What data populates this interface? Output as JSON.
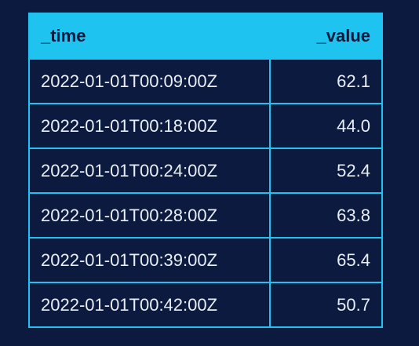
{
  "table": {
    "columns": [
      "_time",
      "_value"
    ],
    "rows": [
      {
        "time": "2022-01-01T00:09:00Z",
        "value": "62.1"
      },
      {
        "time": "2022-01-01T00:18:00Z",
        "value": "44.0"
      },
      {
        "time": "2022-01-01T00:24:00Z",
        "value": "52.4"
      },
      {
        "time": "2022-01-01T00:28:00Z",
        "value": "63.8"
      },
      {
        "time": "2022-01-01T00:39:00Z",
        "value": "65.4"
      },
      {
        "time": "2022-01-01T00:42:00Z",
        "value": "50.7"
      }
    ]
  },
  "colors": {
    "background": "#0b1a3e",
    "header_accent": "#1ec4ef",
    "text": "#e9edf5"
  }
}
